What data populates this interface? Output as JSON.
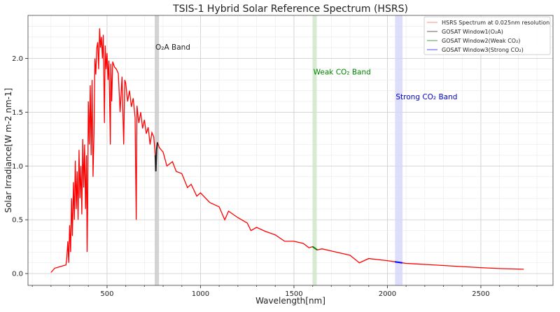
{
  "chart_data": {
    "type": "line",
    "title": "TSIS-1 Hybrid Solar Reference Spectrum (HSRS)",
    "xlabel": "Wavelength[nm]",
    "ylabel": "Solar Irradiance[W m-2 nm-1]",
    "xlim": [
      77,
      2886
    ],
    "ylim": [
      -0.11,
      2.4
    ],
    "xticks": [
      500,
      1000,
      1500,
      2000,
      2500
    ],
    "yticks": [
      0.0,
      0.5,
      1.0,
      1.5,
      2.0
    ],
    "xtick_labels": [
      "500",
      "1000",
      "1500",
      "2000",
      "2500"
    ],
    "ytick_labels": [
      "0.0",
      "0.5",
      "1.0",
      "1.5",
      "2.0"
    ],
    "grid": true,
    "minor_grid": true,
    "legend_position": "top-right",
    "series": [
      {
        "name": "HSRS Spectrum at 0.025nm resolution",
        "color": "#ff0000",
        "x": [
          200,
          220,
          240,
          260,
          280,
          285,
          290,
          295,
          300,
          305,
          310,
          315,
          320,
          325,
          330,
          335,
          340,
          345,
          350,
          355,
          360,
          365,
          370,
          375,
          380,
          385,
          390,
          393,
          396,
          400,
          405,
          410,
          415,
          420,
          425,
          430,
          435,
          440,
          445,
          450,
          455,
          460,
          465,
          470,
          475,
          480,
          486,
          490,
          495,
          500,
          505,
          510,
          518,
          520,
          525,
          530,
          540,
          550,
          560,
          570,
          580,
          589,
          595,
          600,
          610,
          620,
          630,
          640,
          650,
          656,
          660,
          670,
          680,
          690,
          700,
          710,
          720,
          730,
          740,
          750,
          758,
          761,
          765,
          770,
          780,
          800,
          820,
          850,
          870,
          900,
          930,
          950,
          980,
          1000,
          1050,
          1100,
          1130,
          1150,
          1200,
          1250,
          1270,
          1300,
          1350,
          1400,
          1450,
          1500,
          1550,
          1580,
          1600,
          1625,
          1650,
          1700,
          1750,
          1800,
          1850,
          1900,
          1950,
          2000,
          2040,
          2080,
          2100,
          2150,
          2200,
          2300,
          2400,
          2500,
          2600,
          2730
        ],
        "y": [
          0.01,
          0.05,
          0.06,
          0.07,
          0.08,
          0.15,
          0.3,
          0.1,
          0.45,
          0.2,
          0.7,
          0.35,
          0.85,
          0.5,
          1.05,
          0.6,
          0.95,
          0.5,
          1.15,
          0.7,
          1.0,
          0.55,
          1.25,
          0.8,
          1.2,
          0.6,
          1.1,
          0.2,
          0.6,
          1.6,
          1.2,
          1.75,
          1.1,
          1.8,
          0.9,
          1.3,
          2.0,
          1.85,
          2.1,
          2.15,
          1.9,
          2.28,
          2.1,
          2.2,
          2.0,
          2.22,
          1.4,
          2.12,
          1.9,
          2.05,
          1.8,
          1.98,
          1.2,
          1.95,
          1.6,
          1.97,
          1.92,
          1.9,
          1.86,
          1.5,
          1.83,
          1.2,
          1.8,
          1.77,
          1.6,
          1.7,
          1.55,
          1.63,
          1.45,
          0.5,
          1.56,
          1.4,
          1.5,
          1.35,
          1.43,
          1.3,
          1.36,
          1.2,
          1.31,
          1.27,
          1.1,
          0.95,
          1.15,
          1.22,
          1.17,
          1.13,
          1.0,
          1.04,
          0.95,
          0.93,
          0.8,
          0.83,
          0.72,
          0.75,
          0.66,
          0.62,
          0.5,
          0.58,
          0.52,
          0.47,
          0.4,
          0.43,
          0.39,
          0.36,
          0.3,
          0.3,
          0.28,
          0.24,
          0.25,
          0.22,
          0.23,
          0.21,
          0.19,
          0.17,
          0.1,
          0.14,
          0.13,
          0.12,
          0.11,
          0.1,
          0.095,
          0.09,
          0.085,
          0.075,
          0.065,
          0.055,
          0.047,
          0.04
        ]
      },
      {
        "name": "GOSAT Window1(O₂A)",
        "color": "#222222",
        "range": [
          758,
          770
        ]
      },
      {
        "name": "GOSAT Window2(Weak CO₂)",
        "color": "#008000",
        "range": [
          1600,
          1625
        ]
      },
      {
        "name": "GOSAT Window3(Strong CO₂)",
        "color": "#0000ff",
        "range": [
          2040,
          2080
        ]
      }
    ],
    "bands": [
      {
        "label": "O₂A Band",
        "range": [
          755,
          778
        ],
        "color": "#c8c8c8",
        "text_color": "#222222",
        "label_y": 2.08
      },
      {
        "label": "Weak CO₂ Band",
        "range": [
          1600,
          1622
        ],
        "color": "#cde6c8",
        "text_color": "#008000",
        "label_y": 1.85
      },
      {
        "label": "Strong CO₂ Band",
        "range": [
          2041,
          2081
        ],
        "color": "#d6d6fa",
        "text_color": "#0000cc",
        "label_y": 1.62
      }
    ]
  }
}
